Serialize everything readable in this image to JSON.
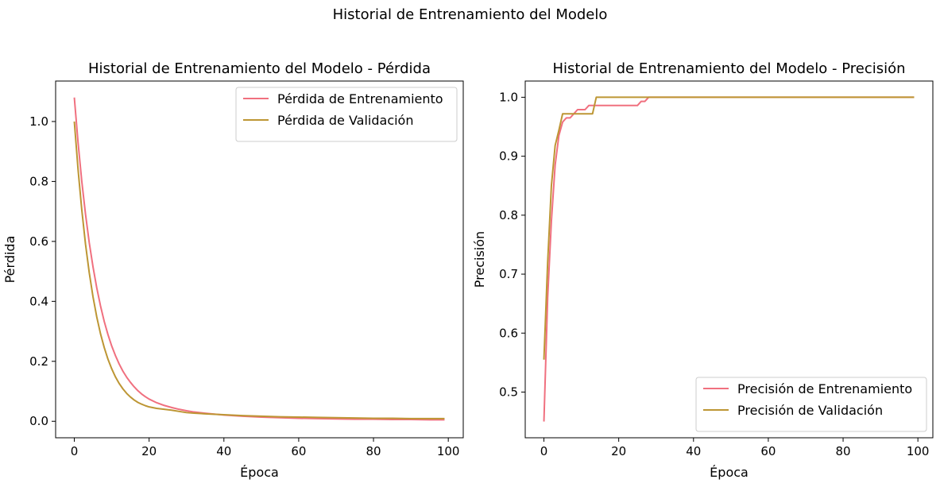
{
  "figure": {
    "suptitle": "Historial de Entrenamiento del Modelo"
  },
  "colors": {
    "train": "#f0707f",
    "val": "#bd9634",
    "frame": "#000000",
    "legend_border": "#cccccc"
  },
  "chart_data": [
    {
      "type": "line",
      "title": "Historial de Entrenamiento del Modelo - Pérdida",
      "xlabel": "Época",
      "ylabel": "Pérdida",
      "xlim": [
        -5,
        104
      ],
      "ylim": [
        -0.055,
        1.135
      ],
      "xticks": [
        0,
        20,
        40,
        60,
        80,
        100
      ],
      "xtick_labels": [
        "0",
        "20",
        "40",
        "60",
        "80",
        "100"
      ],
      "yticks": [
        0.0,
        0.2,
        0.4,
        0.6,
        0.8,
        1.0
      ],
      "ytick_labels": [
        "0.0",
        "0.2",
        "0.4",
        "0.6",
        "0.8",
        "1.0"
      ],
      "grid": false,
      "legend_position": "upper right",
      "series": [
        {
          "name": "Pérdida de Entrenamiento",
          "color_key": "train",
          "x": [
            0,
            1,
            2,
            3,
            4,
            5,
            6,
            7,
            8,
            9,
            10,
            11,
            12,
            13,
            14,
            15,
            16,
            17,
            18,
            19,
            20,
            22,
            24,
            26,
            28,
            30,
            32,
            35,
            40,
            45,
            50,
            55,
            60,
            65,
            70,
            75,
            80,
            85,
            90,
            95,
            99
          ],
          "y": [
            1.08,
            0.93,
            0.8,
            0.69,
            0.595,
            0.515,
            0.445,
            0.385,
            0.333,
            0.289,
            0.251,
            0.219,
            0.191,
            0.167,
            0.147,
            0.13,
            0.115,
            0.102,
            0.091,
            0.082,
            0.074,
            0.062,
            0.053,
            0.046,
            0.04,
            0.035,
            0.031,
            0.027,
            0.021,
            0.017,
            0.014,
            0.012,
            0.01,
            0.009,
            0.008,
            0.007,
            0.007,
            0.006,
            0.006,
            0.005,
            0.005
          ]
        },
        {
          "name": "Pérdida de Validación",
          "color_key": "val",
          "x": [
            0,
            1,
            2,
            3,
            4,
            5,
            6,
            7,
            8,
            9,
            10,
            11,
            12,
            13,
            14,
            15,
            16,
            17,
            18,
            19,
            20,
            22,
            24,
            26,
            28,
            30,
            32,
            35,
            40,
            45,
            50,
            55,
            60,
            65,
            70,
            75,
            80,
            85,
            90,
            95,
            99
          ],
          "y": [
            1.0,
            0.84,
            0.705,
            0.59,
            0.495,
            0.415,
            0.348,
            0.292,
            0.246,
            0.207,
            0.175,
            0.148,
            0.126,
            0.108,
            0.093,
            0.081,
            0.071,
            0.063,
            0.057,
            0.052,
            0.048,
            0.043,
            0.04,
            0.037,
            0.033,
            0.029,
            0.027,
            0.025,
            0.022,
            0.019,
            0.017,
            0.015,
            0.014,
            0.013,
            0.012,
            0.011,
            0.01,
            0.01,
            0.009,
            0.009,
            0.009
          ]
        }
      ]
    },
    {
      "type": "line",
      "title": "Historial de Entrenamiento del Modelo - Precisión",
      "xlabel": "Época",
      "ylabel": "Precisión",
      "xlim": [
        -5,
        104
      ],
      "ylim": [
        0.4225,
        1.0275
      ],
      "xticks": [
        0,
        20,
        40,
        60,
        80,
        100
      ],
      "xtick_labels": [
        "0",
        "20",
        "40",
        "60",
        "80",
        "100"
      ],
      "yticks": [
        0.5,
        0.6,
        0.7,
        0.8,
        0.9,
        1.0
      ],
      "ytick_labels": [
        "0.5",
        "0.6",
        "0.7",
        "0.8",
        "0.9",
        "1.0"
      ],
      "grid": false,
      "legend_position": "lower right",
      "series": [
        {
          "name": "Precisión de Entrenamiento",
          "color_key": "train",
          "x": [
            0,
            1,
            2,
            3,
            4,
            5,
            6,
            7,
            8,
            9,
            10,
            11,
            12,
            13,
            14,
            15,
            16,
            17,
            18,
            19,
            20,
            21,
            22,
            23,
            24,
            25,
            26,
            27,
            28,
            29,
            30,
            40,
            50,
            60,
            70,
            80,
            90,
            99
          ],
          "y": [
            0.45,
            0.66,
            0.79,
            0.885,
            0.935,
            0.958,
            0.965,
            0.965,
            0.972,
            0.979,
            0.979,
            0.979,
            0.986,
            0.986,
            0.986,
            0.986,
            0.986,
            0.986,
            0.986,
            0.986,
            0.986,
            0.986,
            0.986,
            0.986,
            0.986,
            0.986,
            0.993,
            0.993,
            1.0,
            1.0,
            1.0,
            1.0,
            1.0,
            1.0,
            1.0,
            1.0,
            1.0,
            1.0
          ]
        },
        {
          "name": "Precisión de Validación",
          "color_key": "val",
          "x": [
            0,
            1,
            2,
            3,
            4,
            5,
            6,
            7,
            8,
            9,
            10,
            11,
            12,
            13,
            14,
            15,
            20,
            30,
            40,
            50,
            60,
            70,
            80,
            90,
            99
          ],
          "y": [
            0.555,
            0.72,
            0.85,
            0.918,
            0.944,
            0.972,
            0.972,
            0.972,
            0.972,
            0.972,
            0.972,
            0.972,
            0.972,
            0.972,
            1.0,
            1.0,
            1.0,
            1.0,
            1.0,
            1.0,
            1.0,
            1.0,
            1.0,
            1.0,
            1.0
          ]
        }
      ]
    }
  ]
}
